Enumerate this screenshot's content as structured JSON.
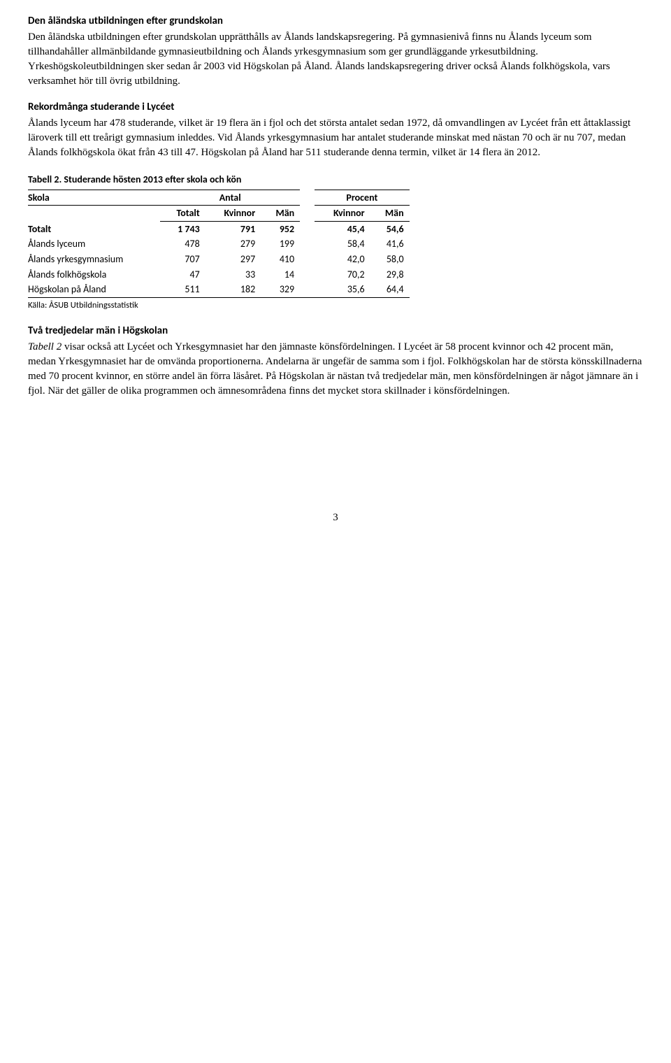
{
  "section1": {
    "heading": "Den åländska utbildningen efter grundskolan",
    "body": "Den åländska utbildningen efter grundskolan upprätthålls av Ålands landskapsregering. På gymnasienivå finns nu Ålands lyceum som tillhandahåller allmänbildande gymnasieutbildning och Ålands yrkesgymnasium som ger grundläggande yrkesutbildning. Yrkeshögskoleutbildningen sker sedan år 2003 vid Högskolan på Åland. Ålands landskapsregering driver också Ålands folkhögskola, vars verksamhet hör till övrig utbildning."
  },
  "section2": {
    "heading": "Rekordmånga studerande i Lycéet",
    "body": "Ålands lyceum har 478 studerande, vilket är 19 flera än i fjol och det största antalet sedan 1972, då omvandlingen av Lycéet från ett åttaklassigt läroverk till ett treårigt gymnasium inleddes. Vid Ålands yrkesgymnasium har antalet studerande minskat med nästan 70 och är nu 707, medan Ålands folkhögskola ökat från 43 till 47. Högskolan på Åland har 511 studerande denna termin, vilket är 14 flera än 2012."
  },
  "table": {
    "caption": "Tabell 2. Studerande hösten 2013 efter skola och kön",
    "col_skola": "Skola",
    "col_antal": "Antal",
    "col_procent": "Procent",
    "sub_totalt": "Totalt",
    "sub_kvinnor": "Kvinnor",
    "sub_man": "Män",
    "rows": [
      {
        "label": "Totalt",
        "totalt": "1 743",
        "kv": "791",
        "man": "952",
        "pkv": "45,4",
        "pman": "54,6"
      },
      {
        "label": "Ålands lyceum",
        "totalt": "478",
        "kv": "279",
        "man": "199",
        "pkv": "58,4",
        "pman": "41,6"
      },
      {
        "label": "Ålands yrkesgymnasium",
        "totalt": "707",
        "kv": "297",
        "man": "410",
        "pkv": "42,0",
        "pman": "58,0"
      },
      {
        "label": "Ålands folkhögskola",
        "totalt": "47",
        "kv": "33",
        "man": "14",
        "pkv": "70,2",
        "pman": "29,8"
      },
      {
        "label": "Högskolan på Åland",
        "totalt": "511",
        "kv": "182",
        "man": "329",
        "pkv": "35,6",
        "pman": "64,4"
      }
    ],
    "source": "Källa: ÅSUB Utbildningsstatistik"
  },
  "section3": {
    "heading": "Två tredjedelar män i Högskolan",
    "ital": "Tabell 2",
    "body_rest": " visar också att Lycéet och Yrkesgymnasiet har den jämnaste könsfördelningen. I Lycéet är 58 procent kvinnor och 42 procent män, medan Yrkesgymnasiet har de omvända proportionerna. Andelarna är ungefär de samma som i fjol. Folkhögskolan har de största könsskillnaderna med 70 procent kvinnor, en större andel än förra läsåret. På Högskolan är nästan två tredjedelar män, men könsfördelningen är något jämnare än i fjol. När det gäller de olika programmen och ämnesområdena finns det mycket stora skillnader i könsfördelningen."
  },
  "page": "3"
}
